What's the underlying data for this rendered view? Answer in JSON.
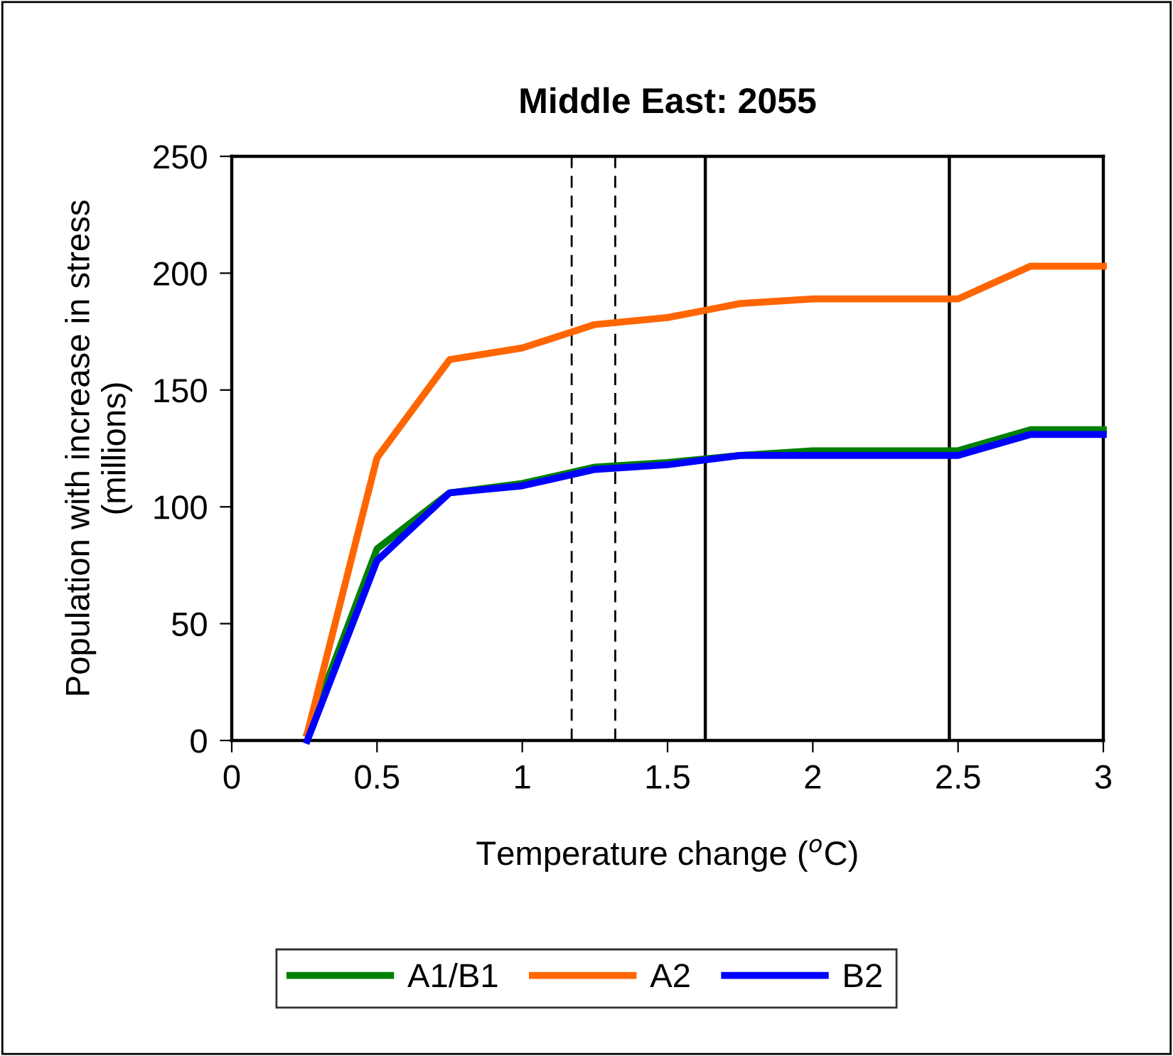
{
  "chart_data": {
    "type": "line",
    "title": "Middle East: 2055",
    "xlabel": "Temperature change ($^{o}$C)",
    "ylabel": "Population with increase in stress\n(millions)",
    "x": [
      0.26,
      0.5,
      0.75,
      1.0,
      1.25,
      1.5,
      1.75,
      2.0,
      2.5,
      2.75,
      3.0
    ],
    "series": [
      {
        "name": "A1/B1",
        "color": "#008000",
        "values": [
          3,
          82,
          106,
          110,
          117,
          119,
          122,
          124,
          124,
          133,
          133
        ]
      },
      {
        "name": "A2",
        "color": "#ff6600",
        "values": [
          3,
          121,
          163,
          168,
          178,
          181,
          187,
          189,
          189,
          203,
          203
        ]
      },
      {
        "name": "B2",
        "color": "#0000ff",
        "values": [
          0,
          77,
          106,
          109,
          116,
          118,
          122,
          122,
          122,
          131,
          131
        ]
      }
    ],
    "xlim": [
      0,
      3
    ],
    "ylim": [
      0,
      250
    ],
    "xticks": [
      0,
      0.5,
      1,
      1.5,
      2,
      2.5,
      3
    ],
    "yticks": [
      0,
      50,
      100,
      150,
      200,
      250
    ],
    "ref_lines": [
      {
        "axis": "x",
        "value": 1.17,
        "color": "#000000",
        "line_style": "dashed"
      },
      {
        "axis": "x",
        "value": 1.32,
        "color": "#000000",
        "line_style": "dashed"
      },
      {
        "axis": "x",
        "value": 1.63,
        "color": "#000000",
        "line_style": "solid"
      },
      {
        "axis": "x",
        "value": 2.47,
        "color": "#000000",
        "line_style": "solid"
      }
    ],
    "grid": false,
    "legend": "bottom",
    "marker": "none",
    "line_style": "solid"
  }
}
